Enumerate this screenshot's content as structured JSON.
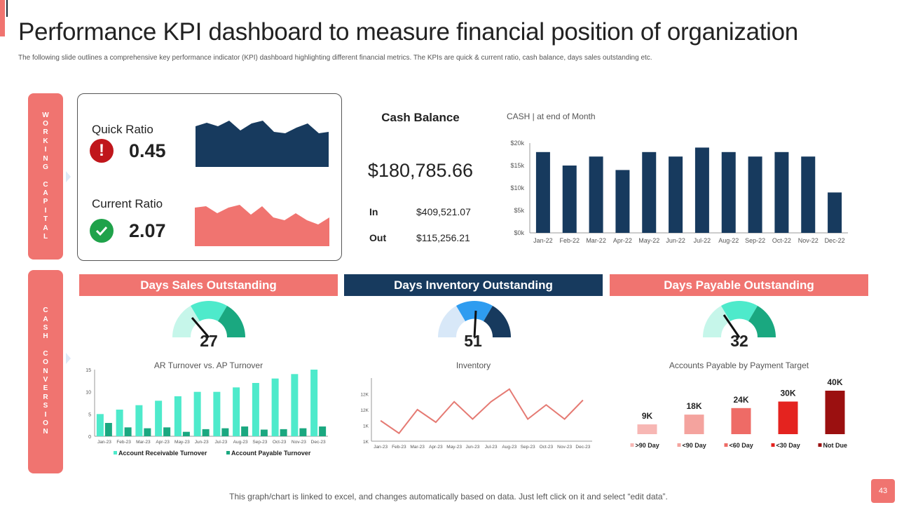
{
  "title": "Performance KPI dashboard to measure financial position of organization",
  "subtitle": "The following slide outlines a comprehensive key performance indicator (KPI) dashboard highlighting  different financial metrics. The KPIs are quick & current ratio, cash balance, days sales outstanding etc.",
  "side_labels": {
    "working_capital": [
      "W",
      "O",
      "R",
      "K",
      "I",
      "N",
      "G",
      " ",
      "C",
      "A",
      "P",
      "I",
      "T",
      "A",
      "L"
    ],
    "cash_conversion": [
      "C",
      "A",
      "S",
      "H",
      " ",
      "C",
      "O",
      "N",
      "V",
      "E",
      "R",
      "S",
      "I",
      "O",
      "N"
    ]
  },
  "quick_ratio": {
    "label": "Quick Ratio",
    "value": "0.45",
    "status_icon": "exclamation-icon"
  },
  "current_ratio": {
    "label": "Current Ratio",
    "value": "2.07",
    "status_icon": "check-icon"
  },
  "cash_balance": {
    "label": "Cash Balance",
    "value": "$180,785.66",
    "in_label": "In",
    "in_value": "$409,521.07",
    "out_label": "Out",
    "out_value": "$115,256.21"
  },
  "headers": {
    "dso": "Days Sales Outstanding",
    "dio": "Days Inventory Outstanding",
    "dpo": "Days Payable Outstanding"
  },
  "gauges": {
    "dso": "27",
    "dio": "51",
    "dpo": "32"
  },
  "colors": {
    "accent": "#f07470",
    "navy": "#173a5e",
    "teal": "#4eeacb",
    "dark_teal": "#1aa880"
  },
  "chart_data": [
    {
      "id": "cash",
      "type": "bar",
      "title": "CASH | at end of Month",
      "categories": [
        "Jan-22",
        "Feb-22",
        "Mar-22",
        "Apr-22",
        "May-22",
        "Jun-22",
        "Jul-22",
        "Aug-22",
        "Sep-22",
        "Oct-22",
        "Nov-22",
        "Dec-22"
      ],
      "values": [
        18000,
        15000,
        17000,
        14000,
        18000,
        17000,
        19000,
        18000,
        17000,
        18000,
        17000,
        9000
      ],
      "yticks": [
        "$0k",
        "$5k",
        "$10k",
        "$15k",
        "$20k"
      ],
      "ylim": [
        0,
        20000
      ]
    },
    {
      "id": "ar_ap",
      "type": "bar",
      "title": "AR Turnover vs. AP Turnover",
      "categories": [
        "Jan-23",
        "Feb-23",
        "Mar-23",
        "Apr-23",
        "May-23",
        "Jun-23",
        "Jul-23",
        "Aug-23",
        "Sep-23",
        "Oct-23",
        "Nov-23",
        "Dec-23"
      ],
      "series": [
        {
          "name": "Account Receivable Turnover",
          "values": [
            5,
            6,
            7,
            8,
            9,
            10,
            10,
            11,
            12,
            13,
            14,
            15
          ]
        },
        {
          "name": "Account Payable Turnover",
          "values": [
            3,
            2,
            1.8,
            2,
            1,
            1.6,
            1.8,
            2.2,
            1.5,
            1.6,
            1.8,
            2.2
          ]
        }
      ],
      "yticks": [
        "0",
        "5",
        "10",
        "15"
      ],
      "ylim": [
        0,
        15
      ]
    },
    {
      "id": "inventory",
      "type": "line",
      "title": "Inventory",
      "categories": [
        "Jan-23",
        "Feb-23",
        "Mar-23",
        "Apr-23",
        "May-23",
        "Jun-23",
        "Jul-23",
        "Aug-23",
        "Sep-23",
        "Oct-23",
        "Nov-23",
        "Dec-23"
      ],
      "values": [
        1.3,
        0.5,
        2.0,
        1.2,
        2.5,
        1.4,
        2.5,
        3.3,
        1.4,
        2.3,
        1.4,
        2.6
      ],
      "yticks": [
        "1K",
        "1K",
        "1K",
        "1K",
        "12K",
        "12K",
        "12K"
      ],
      "ylim": [
        0,
        4
      ]
    },
    {
      "id": "ap_target",
      "type": "bar",
      "title": "Accounts Payable by Payment Target",
      "categories": [
        ">90 Day",
        "<90 Day",
        "<60 Day",
        "<30 Day",
        "Not Due"
      ],
      "values": [
        9,
        18,
        24,
        30,
        40
      ],
      "labels": [
        "9K",
        "18K",
        "24K",
        "30K",
        "40K"
      ],
      "colors": [
        "#f7b7b4",
        "#f4a39e",
        "#ee6b66",
        "#e4231f",
        "#9b1010"
      ],
      "ylim": [
        0,
        40
      ]
    }
  ],
  "footer": "This graph/chart is linked to excel,  and changes automatically based on data. Just left click on it and select “edit data”.",
  "page_number": "43"
}
